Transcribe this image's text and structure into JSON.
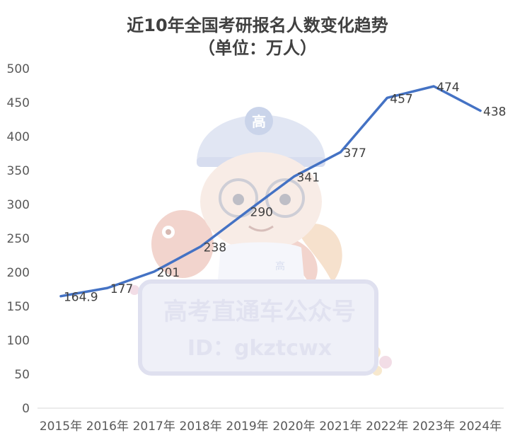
{
  "chart_data": {
    "type": "line",
    "title": "近10年全国考研报名人数变化趋势",
    "subtitle": "（单位：万人）",
    "categories": [
      "2015年",
      "2016年",
      "2017年",
      "2018年",
      "2019年",
      "2020年",
      "2021年",
      "2022年",
      "2023年",
      "2024年"
    ],
    "series": [
      {
        "values": [
          164.9,
          177,
          201,
          238,
          290,
          341,
          377,
          457,
          474,
          438
        ],
        "data_labels": [
          "164.9",
          "177",
          "201",
          "238",
          "290",
          "341",
          "377",
          "457",
          "474",
          "438"
        ],
        "color": "#4472c4"
      }
    ],
    "ylim": [
      0,
      500
    ],
    "yticks": [
      0,
      50,
      100,
      150,
      200,
      250,
      300,
      350,
      400,
      450,
      500
    ],
    "ytick_labels": [
      "0",
      "50",
      "100",
      "150",
      "200",
      "250",
      "300",
      "350",
      "400",
      "450",
      "500"
    ],
    "grid": false,
    "legend": "none"
  },
  "watermark": {
    "cap_badge": "高",
    "shirt_badge": "高",
    "line1": "高考直通车公众号",
    "line2": "ID：gkztcwx",
    "colors": {
      "panel": "#c5c8e3",
      "panel_inner": "#e3e5f3",
      "text": "#c9cce4",
      "fish": "#e8b2a5",
      "face": "#f3ded2"
    }
  }
}
